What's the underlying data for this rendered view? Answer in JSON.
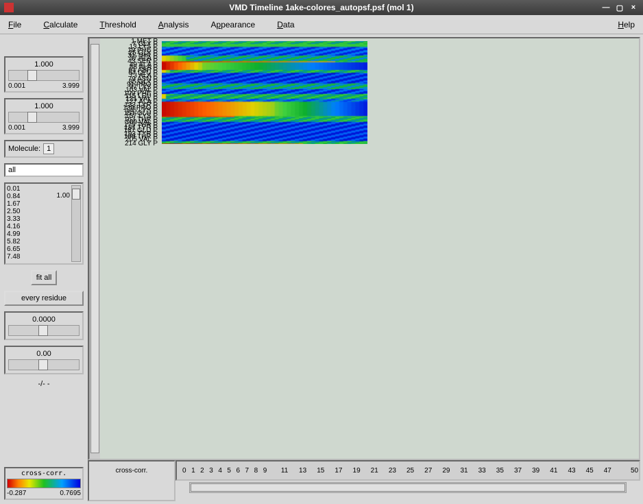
{
  "window": {
    "title": "VMD Timeline  1ake-colores_autopsf.psf (mol 1)"
  },
  "menu": {
    "file": "File",
    "calculate": "Calculate",
    "threshold": "Threshold",
    "analysis": "Analysis",
    "appearance": "Appearance",
    "data": "Data",
    "help": "Help"
  },
  "left": {
    "slider1": {
      "value": "1.000",
      "min": "0.001",
      "max": "3.999",
      "thumb_pct": 26
    },
    "slider2": {
      "value": "1.000",
      "min": "0.001",
      "max": "3.999",
      "thumb_pct": 26
    },
    "molecule_label": "Molecule:",
    "molecule_value": "1",
    "selection_text": "all",
    "list_values": [
      "0.01",
      "0.84",
      "1.67",
      "2.50",
      "3.33",
      "4.16",
      "4.99",
      "5.82",
      "6.65",
      "7.48"
    ],
    "list_marker": "1.00",
    "fit_all_label": "fit all",
    "every_residue_label": "every residue",
    "slider3": {
      "value": "0.0000",
      "thumb_pct": 42
    },
    "slider4": {
      "value": "0.00",
      "thumb_pct": 42
    },
    "dash_label": "-/-  -",
    "legend": {
      "title": "cross-corr.",
      "min": "-0.287",
      "max": "0.7695"
    }
  },
  "bottom": {
    "measure_label": "cross-corr.",
    "xticks": [
      0,
      1,
      2,
      3,
      4,
      5,
      6,
      7,
      8,
      9,
      11,
      13,
      15,
      17,
      19,
      21,
      23,
      25,
      27,
      29,
      31,
      33,
      35,
      37,
      39,
      41,
      43,
      45,
      47,
      50
    ],
    "x_max": 50
  },
  "heatmap": {
    "n_rows": 214,
    "n_cols": 51,
    "background_color": "#cfd8cf",
    "ylabels": [
      {
        "i": 1,
        "t": "1 MET P"
      },
      {
        "i": 7,
        "t": "7 GLY P"
      },
      {
        "i": 13,
        "t": "13 LYS P"
      },
      {
        "i": 19,
        "t": "19 PHE P"
      },
      {
        "i": 25,
        "t": "25 GLY P"
      },
      {
        "i": 31,
        "t": "31 THR P"
      },
      {
        "i": 37,
        "t": "37 ALA P"
      },
      {
        "i": 43,
        "t": "43 SER P"
      },
      {
        "i": 49,
        "t": "49 ALA P"
      },
      {
        "i": 55,
        "t": "55 ALA P"
      },
      {
        "i": 61,
        "t": "61 ASP P"
      },
      {
        "i": 67,
        "t": "67 LEU P"
      },
      {
        "i": 73,
        "t": "73 ALA P"
      },
      {
        "i": 79,
        "t": "79 ASN P"
      },
      {
        "i": 85,
        "t": "85 GLY P"
      },
      {
        "i": 91,
        "t": "91 PRO P"
      },
      {
        "i": 97,
        "t": "97 LYS P"
      },
      {
        "i": 103,
        "t": "103 VAL P"
      },
      {
        "i": 109,
        "t": "109 PHE P"
      },
      {
        "i": 115,
        "t": "115 LEU P"
      },
      {
        "i": 121,
        "t": "121 VAL P"
      },
      {
        "i": 127,
        "t": "127 ALA P"
      },
      {
        "i": 133,
        "t": "133 TYR P"
      },
      {
        "i": 139,
        "t": "139 PRO P"
      },
      {
        "i": 145,
        "t": "145 LYS P"
      },
      {
        "i": 151,
        "t": "151 GLU P"
      },
      {
        "i": 157,
        "t": "157 LYS P"
      },
      {
        "i": 163,
        "t": "163 THR P"
      },
      {
        "i": 169,
        "t": "169 VAL P"
      },
      {
        "i": 175,
        "t": "175 THR P"
      },
      {
        "i": 181,
        "t": "181 TYR P"
      },
      {
        "i": 187,
        "t": "187 GLU P"
      },
      {
        "i": 193,
        "t": "193 TYR P"
      },
      {
        "i": 199,
        "t": "199 THR P"
      },
      {
        "i": 205,
        "t": "205 VAL P"
      },
      {
        "i": 214,
        "t": "214 GLY P"
      }
    ],
    "bands": [
      {
        "r0": 1,
        "r1": 6,
        "base": 0.55,
        "hot_extent": 0.0
      },
      {
        "r0": 7,
        "r1": 12,
        "base": 0.45,
        "hot_extent": 0.0,
        "green_stripe": true
      },
      {
        "r0": 13,
        "r1": 30,
        "base": 0.78,
        "hot_extent": 0.0
      },
      {
        "r0": 31,
        "r1": 42,
        "base": 0.6,
        "hot_extent": 0.12
      },
      {
        "r0": 43,
        "r1": 44,
        "base": 0.3,
        "hot_extent": 0.85,
        "thin_red": true
      },
      {
        "r0": 45,
        "r1": 60,
        "base": 0.35,
        "hot_extent": 0.2,
        "strong_red": true
      },
      {
        "r0": 61,
        "r1": 66,
        "base": 0.55,
        "hot_extent": 0.04
      },
      {
        "r0": 67,
        "r1": 88,
        "base": 0.82,
        "hot_extent": 0.0
      },
      {
        "r0": 89,
        "r1": 100,
        "base": 0.6,
        "hot_extent": 0.0
      },
      {
        "r0": 101,
        "r1": 110,
        "base": 0.8,
        "hot_extent": 0.0
      },
      {
        "r0": 111,
        "r1": 120,
        "base": 0.55,
        "hot_extent": 0.02
      },
      {
        "r0": 121,
        "r1": 126,
        "base": 0.72,
        "hot_extent": 0.0
      },
      {
        "r0": 127,
        "r1": 156,
        "base": 0.25,
        "hot_extent": 0.55,
        "strong_red": true
      },
      {
        "r0": 157,
        "r1": 158,
        "base": 0.35,
        "hot_extent": 0.35,
        "thin_red": true
      },
      {
        "r0": 159,
        "r1": 168,
        "base": 0.55,
        "hot_extent": 0.0
      },
      {
        "r0": 169,
        "r1": 208,
        "base": 0.82,
        "hot_extent": 0.0
      },
      {
        "r0": 209,
        "r1": 213,
        "base": 0.55,
        "hot_extent": 0.0
      },
      {
        "r0": 214,
        "r1": 214,
        "base": 0.3,
        "hot_extent": 0.7,
        "thin_red": true
      }
    ],
    "color_stops": [
      {
        "v": 0.0,
        "c": "#c00000"
      },
      {
        "v": 0.15,
        "c": "#ff6000"
      },
      {
        "v": 0.3,
        "c": "#e0d000"
      },
      {
        "v": 0.45,
        "c": "#40d040"
      },
      {
        "v": 0.55,
        "c": "#10b030"
      },
      {
        "v": 0.7,
        "c": "#0080ff"
      },
      {
        "v": 0.85,
        "c": "#0020e0"
      },
      {
        "v": 1.0,
        "c": "#0000c0"
      }
    ]
  }
}
